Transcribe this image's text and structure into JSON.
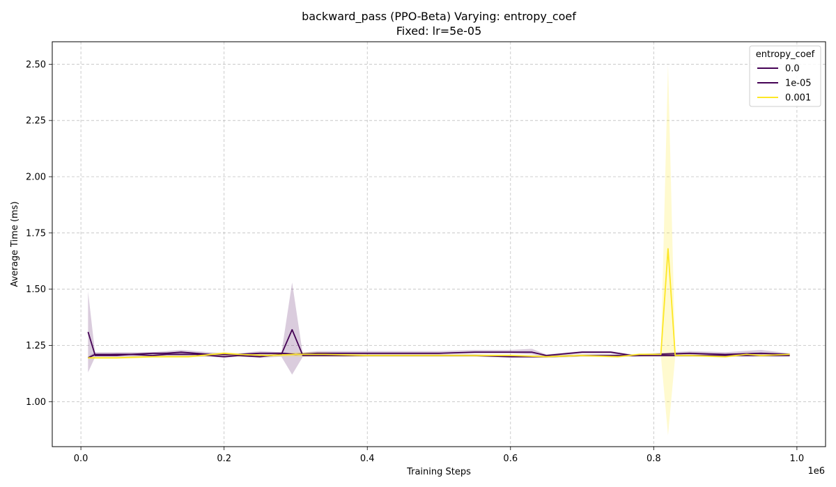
{
  "chart_data": {
    "type": "line",
    "title": "backward_pass (PPO-Beta) Varying: entropy_coef",
    "subtitle": "Fixed: lr=5e-05",
    "xlabel": "Training Steps",
    "ylabel": "Average Time (ms)",
    "x_offset_label": "1e6",
    "xlim": [
      -0.04,
      1.04
    ],
    "ylim": [
      0.8,
      2.6
    ],
    "x_ticks": [
      0.0,
      0.2,
      0.4,
      0.6,
      0.8,
      1.0
    ],
    "x_tick_labels": [
      "0.0",
      "0.2",
      "0.4",
      "0.6",
      "0.8",
      "1.0"
    ],
    "y_ticks": [
      1.0,
      1.25,
      1.5,
      1.75,
      2.0,
      2.25,
      2.5
    ],
    "y_tick_labels": [
      "1.00",
      "1.25",
      "1.50",
      "1.75",
      "2.00",
      "2.25",
      "2.50"
    ],
    "grid": true,
    "legend": {
      "title": "entropy_coef",
      "placement": "top-right"
    },
    "series": [
      {
        "name": "0.0",
        "color": "#440154",
        "x": [
          0.01,
          0.02,
          0.03,
          0.05,
          0.07,
          0.1,
          0.12,
          0.14,
          0.16,
          0.18,
          0.2,
          0.22,
          0.25,
          0.28,
          0.295,
          0.31,
          0.33,
          0.36,
          0.4,
          0.45,
          0.5,
          0.55,
          0.6,
          0.65,
          0.7,
          0.75,
          0.8,
          0.82,
          0.85,
          0.9,
          0.95,
          0.99
        ],
        "values": [
          1.31,
          1.205,
          1.205,
          1.205,
          1.21,
          1.205,
          1.21,
          1.21,
          1.21,
          1.205,
          1.2,
          1.205,
          1.2,
          1.21,
          1.32,
          1.205,
          1.205,
          1.205,
          1.205,
          1.205,
          1.205,
          1.205,
          1.2,
          1.2,
          1.205,
          1.205,
          1.205,
          1.205,
          1.205,
          1.205,
          1.205,
          1.205
        ],
        "lower": [
          1.13,
          1.2,
          1.2,
          1.2,
          1.2,
          1.2,
          1.2,
          1.2,
          1.2,
          1.2,
          1.195,
          1.2,
          1.195,
          1.2,
          1.12,
          1.2,
          1.2,
          1.2,
          1.2,
          1.2,
          1.2,
          1.2,
          1.195,
          1.195,
          1.2,
          1.2,
          1.2,
          1.2,
          1.2,
          1.2,
          1.2,
          1.2
        ],
        "upper": [
          1.49,
          1.21,
          1.21,
          1.215,
          1.215,
          1.215,
          1.22,
          1.22,
          1.215,
          1.21,
          1.205,
          1.21,
          1.21,
          1.215,
          1.53,
          1.21,
          1.21,
          1.21,
          1.21,
          1.21,
          1.21,
          1.21,
          1.205,
          1.205,
          1.21,
          1.21,
          1.21,
          1.21,
          1.21,
          1.21,
          1.21,
          1.21
        ]
      },
      {
        "name": "1e-05",
        "color": "#440154",
        "x": [
          0.01,
          0.02,
          0.03,
          0.05,
          0.07,
          0.1,
          0.12,
          0.14,
          0.16,
          0.18,
          0.2,
          0.22,
          0.25,
          0.28,
          0.3,
          0.33,
          0.36,
          0.4,
          0.45,
          0.5,
          0.55,
          0.6,
          0.63,
          0.65,
          0.7,
          0.74,
          0.77,
          0.8,
          0.85,
          0.9,
          0.95,
          0.99
        ],
        "values": [
          1.195,
          1.21,
          1.21,
          1.21,
          1.21,
          1.215,
          1.215,
          1.22,
          1.215,
          1.21,
          1.21,
          1.21,
          1.215,
          1.215,
          1.21,
          1.215,
          1.215,
          1.215,
          1.215,
          1.215,
          1.22,
          1.22,
          1.22,
          1.205,
          1.22,
          1.22,
          1.205,
          1.21,
          1.215,
          1.21,
          1.215,
          1.21
        ],
        "lower": [
          1.19,
          1.205,
          1.205,
          1.205,
          1.205,
          1.21,
          1.21,
          1.21,
          1.21,
          1.205,
          1.205,
          1.205,
          1.21,
          1.21,
          1.205,
          1.21,
          1.21,
          1.21,
          1.21,
          1.21,
          1.215,
          1.215,
          1.21,
          1.2,
          1.215,
          1.215,
          1.2,
          1.205,
          1.21,
          1.205,
          1.205,
          1.205
        ],
        "upper": [
          1.2,
          1.22,
          1.22,
          1.22,
          1.22,
          1.22,
          1.225,
          1.23,
          1.225,
          1.22,
          1.215,
          1.215,
          1.225,
          1.22,
          1.215,
          1.225,
          1.225,
          1.225,
          1.225,
          1.225,
          1.23,
          1.23,
          1.235,
          1.21,
          1.225,
          1.225,
          1.21,
          1.215,
          1.225,
          1.22,
          1.23,
          1.215
        ]
      },
      {
        "name": "0.001",
        "color": "#fde725",
        "x": [
          0.01,
          0.05,
          0.1,
          0.15,
          0.2,
          0.22,
          0.26,
          0.3,
          0.34,
          0.4,
          0.45,
          0.5,
          0.55,
          0.6,
          0.65,
          0.7,
          0.75,
          0.78,
          0.8,
          0.81,
          0.82,
          0.83,
          0.85,
          0.9,
          0.93,
          0.95,
          0.99
        ],
        "values": [
          1.195,
          1.195,
          1.2,
          1.2,
          1.215,
          1.21,
          1.205,
          1.21,
          1.21,
          1.205,
          1.205,
          1.205,
          1.205,
          1.205,
          1.2,
          1.205,
          1.2,
          1.21,
          1.21,
          1.21,
          1.68,
          1.205,
          1.205,
          1.2,
          1.21,
          1.205,
          1.21
        ],
        "lower": [
          1.19,
          1.19,
          1.195,
          1.195,
          1.205,
          1.2,
          1.2,
          1.2,
          1.2,
          1.2,
          1.2,
          1.2,
          1.2,
          1.2,
          1.195,
          1.2,
          1.195,
          1.205,
          1.205,
          1.205,
          0.85,
          1.2,
          1.2,
          1.195,
          1.205,
          1.2,
          1.205
        ],
        "upper": [
          1.2,
          1.2,
          1.205,
          1.205,
          1.22,
          1.215,
          1.21,
          1.22,
          1.22,
          1.21,
          1.21,
          1.21,
          1.21,
          1.21,
          1.205,
          1.21,
          1.205,
          1.215,
          1.215,
          1.215,
          2.5,
          1.21,
          1.21,
          1.205,
          1.215,
          1.21,
          1.215
        ]
      }
    ]
  }
}
